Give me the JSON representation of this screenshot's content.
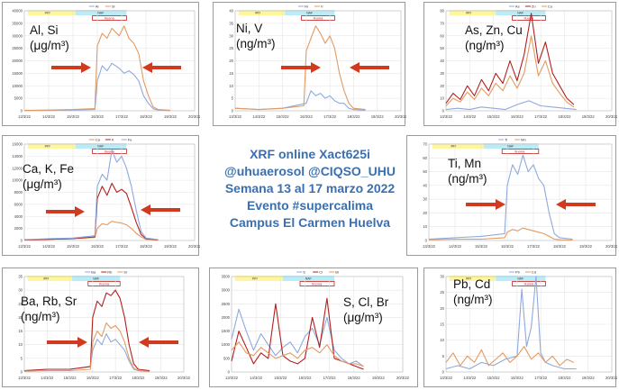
{
  "center_text": {
    "line1": "XRF online Xact625i",
    "line2": "@uhuaerosol @CIQSO_UHU",
    "line3": "Semana 13 al 17 marzo 2022",
    "line4": "Evento #supercalima",
    "line5": "Campus El Carmen Huelva"
  },
  "colors": {
    "blue": "#8fa9dd",
    "orange": "#e39a62",
    "red": "#b31f1f",
    "arrow": "#d13a1e",
    "title": "#3a6fb0"
  },
  "chart_data": [
    {
      "id": "p1",
      "type": "line",
      "label_line1": "Al, Si",
      "label_line2": "(μg/m³)",
      "legend": [
        "Al",
        "Si"
      ],
      "x_ticks": [
        "13/3/22",
        "14/3/22",
        "15/3/22",
        "16/3/22",
        "17/3/22",
        "18/3/22",
        "19/3/22",
        "20/3/22"
      ],
      "y_ticks_left": [
        "0",
        "5000",
        "10000",
        "15000",
        "20000",
        "25000",
        "30000",
        "35000",
        "40000"
      ],
      "band_labels": [
        "###",
        "NAF"
      ],
      "event_label": "Iluona",
      "arrows": true,
      "series": [
        {
          "name": "Al",
          "color": "#8fa9dd",
          "x": [
            0,
            1,
            2,
            2.9,
            3.0,
            3.2,
            3.4,
            3.6,
            3.9,
            4.1,
            4.3,
            4.5,
            4.7,
            4.9,
            5.1,
            5.3,
            5.5,
            6
          ],
          "values": [
            100,
            200,
            300,
            500,
            12000,
            18000,
            16000,
            19000,
            17000,
            15000,
            16000,
            14500,
            12000,
            6000,
            3000,
            800,
            300,
            100
          ]
        },
        {
          "name": "Si",
          "color": "#e39a62",
          "x": [
            0,
            1,
            2,
            2.9,
            3.0,
            3.2,
            3.4,
            3.6,
            3.9,
            4.1,
            4.3,
            4.5,
            4.7,
            4.9,
            5.1,
            5.3,
            5.5,
            6
          ],
          "values": [
            150,
            300,
            500,
            900,
            26000,
            31000,
            29000,
            33000,
            30000,
            34000,
            29000,
            27000,
            23000,
            12000,
            6000,
            1500,
            500,
            200
          ]
        }
      ]
    },
    {
      "id": "p2",
      "type": "line",
      "label_line1": "Ni, V",
      "label_line2": "(ng/m³)",
      "legend": [
        "Ni",
        "V"
      ],
      "x_ticks": [
        "13/3/22",
        "14/3/22",
        "15/3/22",
        "16/3/22",
        "17/3/22",
        "18/3/22",
        "19/3/22",
        "20/3/22"
      ],
      "y_ticks_left": [
        "0",
        "5",
        "10",
        "15",
        "20",
        "25",
        "30",
        "35",
        "40"
      ],
      "band_labels": [
        "###",
        "NAF"
      ],
      "event_label": "Iluona",
      "arrows": true,
      "series": [
        {
          "name": "Ni",
          "color": "#8fa9dd",
          "x": [
            0,
            1,
            2,
            3.0,
            3.2,
            3.4,
            3.6,
            3.8,
            4.0,
            4.2,
            4.4,
            4.6,
            4.8,
            5.0,
            5.5
          ],
          "values": [
            1,
            0.5,
            1,
            3,
            8,
            6,
            7,
            5,
            6,
            4,
            3,
            3,
            1,
            0.5,
            0.2
          ]
        },
        {
          "name": "V",
          "color": "#e39a62",
          "x": [
            0,
            1,
            2,
            2.9,
            3.0,
            3.2,
            3.4,
            3.6,
            3.8,
            4.0,
            4.2,
            4.4,
            4.6,
            4.8,
            5.0,
            5.5
          ],
          "values": [
            1,
            0.5,
            1,
            2,
            24,
            29,
            34,
            31,
            27,
            30,
            25,
            15,
            8,
            3,
            1,
            0.5
          ]
        }
      ]
    },
    {
      "id": "p3",
      "type": "line",
      "label_line1": "As, Zn, Cu",
      "label_line2": "(ng/m³)",
      "legend": [
        "As",
        "Zn",
        "Cu"
      ],
      "x_ticks": [
        "13/3/22",
        "14/3/22",
        "15/3/22",
        "16/3/22",
        "17/3/22",
        "18/3/22",
        "19/3/22",
        "20/3/22"
      ],
      "y_ticks_left": [
        "0",
        "10",
        "20",
        "30",
        "40",
        "50",
        "60",
        "70",
        "80"
      ],
      "band_labels": [
        "###",
        "NAF"
      ],
      "event_label": "Iluona",
      "arrows": false,
      "series": [
        {
          "name": "As",
          "color": "#8fa9dd",
          "x": [
            0,
            0.5,
            1,
            1.5,
            2,
            2.5,
            3,
            3.5,
            4,
            4.5,
            5,
            5.5
          ],
          "values": [
            1,
            2,
            1,
            3,
            2,
            1,
            5,
            8,
            4,
            3,
            2,
            1
          ]
        },
        {
          "name": "Zn",
          "color": "#b31f1f",
          "x": [
            0,
            0.3,
            0.6,
            0.9,
            1.2,
            1.5,
            1.8,
            2.1,
            2.4,
            2.7,
            3.0,
            3.3,
            3.6,
            3.9,
            4.2,
            4.5,
            4.8,
            5.1,
            5.4
          ],
          "values": [
            6,
            14,
            9,
            20,
            12,
            25,
            16,
            30,
            22,
            40,
            24,
            45,
            78,
            38,
            55,
            30,
            20,
            10,
            5
          ]
        },
        {
          "name": "Cu",
          "color": "#e39a62",
          "x": [
            0,
            0.3,
            0.6,
            0.9,
            1.2,
            1.5,
            1.8,
            2.1,
            2.4,
            2.7,
            3.0,
            3.3,
            3.6,
            3.9,
            4.2,
            4.5,
            4.8,
            5.1,
            5.4
          ],
          "values": [
            4,
            10,
            7,
            15,
            9,
            18,
            12,
            22,
            16,
            28,
            18,
            30,
            60,
            28,
            40,
            22,
            14,
            7,
            3
          ]
        }
      ]
    },
    {
      "id": "p4",
      "type": "line",
      "label_line1": "Ca, K, Fe",
      "label_line2": "(μg/m³)",
      "legend": [
        "Ca",
        "K",
        "Fe"
      ],
      "x_ticks": [
        "13/3/22",
        "14/3/22",
        "15/3/22",
        "16/3/22",
        "17/3/22",
        "18/3/22",
        "19/3/22",
        "20/3/22"
      ],
      "y_ticks_left": [
        "0",
        "2000",
        "4000",
        "6000",
        "8000",
        "10000",
        "12000",
        "14000",
        "16000"
      ],
      "band_labels": [
        "###",
        "NAF"
      ],
      "event_label": "Iluona",
      "arrows": true,
      "series": [
        {
          "name": "Ca",
          "color": "#e39a62",
          "x": [
            0,
            1,
            2,
            2.9,
            3.0,
            3.2,
            3.4,
            3.6,
            3.8,
            4.0,
            4.2,
            4.4,
            4.6,
            4.8,
            5.0,
            5.5
          ],
          "values": [
            100,
            200,
            300,
            500,
            2000,
            2800,
            2600,
            3200,
            3000,
            2900,
            2600,
            2000,
            1200,
            600,
            200,
            100
          ]
        },
        {
          "name": "K",
          "color": "#b31f1f",
          "x": [
            0,
            1,
            2,
            2.9,
            3.0,
            3.2,
            3.4,
            3.6,
            3.8,
            4.0,
            4.2,
            4.4,
            4.6,
            4.8,
            5.0,
            5.5
          ],
          "values": [
            100,
            200,
            300,
            600,
            7000,
            9000,
            7500,
            9500,
            8000,
            8500,
            7800,
            5500,
            3000,
            1000,
            300,
            100
          ]
        },
        {
          "name": "Fe",
          "color": "#8fa9dd",
          "x": [
            0,
            1,
            2,
            2.9,
            3.0,
            3.2,
            3.4,
            3.6,
            3.8,
            4.0,
            4.2,
            4.4,
            4.6,
            4.8,
            5.0,
            5.5
          ],
          "values": [
            150,
            300,
            400,
            800,
            9000,
            11000,
            10000,
            15000,
            13000,
            14000,
            12000,
            9000,
            5000,
            1500,
            400,
            150
          ]
        }
      ]
    },
    {
      "id": "p5",
      "type": "line",
      "label_line1": "Ti, Mn",
      "label_line2": "(ng/m³)",
      "legend": [
        "Ti",
        "Mn"
      ],
      "x_ticks": [
        "13/3/22",
        "14/3/22",
        "15/3/22",
        "16/3/22",
        "17/3/22",
        "18/3/22",
        "19/3/22",
        "20/3/22"
      ],
      "y_ticks_left": [
        "0",
        "10",
        "20",
        "30",
        "40",
        "50",
        "60",
        "70"
      ],
      "band_labels": [
        "###",
        "NAF"
      ],
      "event_label": "Iluona",
      "arrows": true,
      "series": [
        {
          "name": "Ti",
          "color": "#8fa9dd",
          "x": [
            0,
            1,
            2,
            2.9,
            3.0,
            3.2,
            3.4,
            3.6,
            3.8,
            4.0,
            4.2,
            4.4,
            4.6,
            4.8,
            5.0,
            5.5
          ],
          "values": [
            1,
            2,
            3,
            5,
            40,
            55,
            48,
            62,
            50,
            55,
            45,
            40,
            20,
            5,
            2,
            1
          ]
        },
        {
          "name": "Mn",
          "color": "#e39a62",
          "x": [
            0,
            1,
            2,
            2.9,
            3.0,
            3.2,
            3.4,
            3.6,
            3.8,
            4.0,
            4.2,
            4.4,
            4.6,
            4.8,
            5.0,
            5.5
          ],
          "values": [
            0.5,
            1,
            1,
            2,
            6,
            8,
            7,
            9,
            8,
            7,
            6,
            5,
            3,
            1,
            0.5,
            0.3
          ]
        }
      ]
    },
    {
      "id": "p6",
      "type": "line",
      "label_line1": "Ba, Rb, Sr",
      "label_line2": "(ng/m³)",
      "legend": [
        "Ba",
        "Rb",
        "Sr"
      ],
      "x_ticks": [
        "13/3/22",
        "14/3/22",
        "15/3/22",
        "16/3/22",
        "17/3/22",
        "18/3/22",
        "19/3/22",
        "20/3/22"
      ],
      "y_ticks_left": [
        "0",
        "5",
        "10",
        "15",
        "20",
        "25",
        "30",
        "35"
      ],
      "band_labels": [
        "###",
        "NAF"
      ],
      "event_label": "Iluona",
      "arrows": true,
      "series": [
        {
          "name": "Ba",
          "color": "#8fa9dd",
          "x": [
            0,
            1,
            2,
            2.9,
            3.0,
            3.2,
            3.4,
            3.6,
            3.8,
            4.0,
            4.2,
            4.4,
            4.6,
            4.8,
            5.0,
            5.5
          ],
          "values": [
            0.5,
            1,
            1,
            2,
            8,
            12,
            10,
            14,
            11,
            12,
            10,
            8,
            4,
            1,
            0.5,
            0.3
          ]
        },
        {
          "name": "Rb",
          "color": "#b31f1f",
          "x": [
            0,
            1,
            2,
            2.9,
            3.0,
            3.2,
            3.4,
            3.6,
            3.8,
            4.0,
            4.2,
            4.4,
            4.6,
            4.8,
            5.0,
            5.5
          ],
          "values": [
            0.5,
            1,
            1,
            2,
            20,
            26,
            24,
            29,
            28,
            30,
            27,
            20,
            10,
            3,
            1,
            0.5
          ]
        },
        {
          "name": "Sr",
          "color": "#e39a62",
          "x": [
            0,
            1,
            2,
            2.9,
            3.0,
            3.2,
            3.4,
            3.6,
            3.8,
            4.0,
            4.2,
            4.4,
            4.6,
            4.8,
            5.0,
            5.5
          ],
          "values": [
            0.3,
            0.5,
            0.5,
            1,
            11,
            15,
            13,
            18,
            16,
            17,
            15,
            11,
            5,
            1.5,
            0.5,
            0.2
          ]
        }
      ]
    },
    {
      "id": "p7",
      "type": "line",
      "label_line1": "S, Cl, Br",
      "label_line2": "(μg/m³)",
      "legend": [
        "S",
        "Cl",
        "Br"
      ],
      "x_ticks": [
        "13/3/22",
        "14/3/22",
        "15/3/22",
        "16/3/22",
        "17/3/22",
        "18/3/22",
        "19/3/22",
        "20/3/22"
      ],
      "y_ticks_left": [
        "0",
        "500",
        "1000",
        "1500",
        "2000",
        "2500",
        "3000",
        "3500"
      ],
      "band_labels": [
        "###",
        "NAF"
      ],
      "event_label": "Iluona",
      "arrows": false,
      "series": [
        {
          "name": "S",
          "color": "#8fa9dd",
          "x": [
            0,
            0.3,
            0.6,
            0.9,
            1.2,
            1.5,
            1.8,
            2.1,
            2.4,
            2.7,
            3.0,
            3.3,
            3.6,
            3.9,
            4.2,
            4.5,
            4.8,
            5.1,
            5.4
          ],
          "values": [
            1200,
            2300,
            1500,
            800,
            1400,
            1000,
            600,
            900,
            1100,
            700,
            1300,
            1600,
            1000,
            2000,
            800,
            500,
            300,
            400,
            200
          ]
        },
        {
          "name": "Cl",
          "color": "#b31f1f",
          "x": [
            0,
            0.3,
            0.6,
            0.9,
            1.2,
            1.5,
            1.8,
            2.1,
            2.4,
            2.7,
            3.0,
            3.3,
            3.6,
            3.9,
            4.2,
            4.5,
            4.8,
            5.1,
            5.4
          ],
          "values": [
            400,
            1500,
            900,
            300,
            700,
            500,
            2500,
            600,
            400,
            300,
            500,
            2000,
            900,
            2700,
            500,
            400,
            300,
            200,
            100
          ]
        },
        {
          "name": "Br",
          "color": "#e39a62",
          "x": [
            0,
            0.3,
            0.6,
            0.9,
            1.2,
            1.5,
            1.8,
            2.1,
            2.4,
            2.7,
            3.0,
            3.3,
            3.6,
            3.9,
            4.2,
            4.5,
            4.8,
            5.1,
            5.4
          ],
          "values": [
            800,
            1100,
            700,
            600,
            900,
            700,
            500,
            600,
            700,
            500,
            800,
            900,
            700,
            1000,
            600,
            400,
            300,
            300,
            200
          ]
        }
      ]
    },
    {
      "id": "p8",
      "type": "line",
      "label_line1": "Pb, Cd",
      "label_line2": "(ng/m³)",
      "legend": [
        "Pb",
        "Cd"
      ],
      "x_ticks": [
        "13/3/22",
        "14/3/22",
        "15/3/22",
        "16/3/22",
        "17/3/22",
        "18/3/22",
        "19/3/22",
        "20/3/22"
      ],
      "y_ticks_left": [
        "0",
        "5",
        "10",
        "15",
        "20",
        "25",
        "30"
      ],
      "band_labels": [
        "###",
        "NAF"
      ],
      "event_label": "Iluona",
      "arrows": false,
      "series": [
        {
          "name": "Pb",
          "color": "#8fa9dd",
          "x": [
            0,
            0.5,
            1,
            1.5,
            2,
            2.5,
            3,
            3.2,
            3.4,
            3.6,
            3.8,
            4.0,
            4.2,
            4.5,
            5,
            5.5
          ],
          "values": [
            1,
            2,
            1,
            3,
            2,
            4,
            5,
            26,
            8,
            14,
            30,
            6,
            3,
            2,
            1,
            1
          ]
        },
        {
          "name": "Cd",
          "color": "#e39a62",
          "x": [
            0,
            0.3,
            0.6,
            0.9,
            1.2,
            1.5,
            1.8,
            2.1,
            2.4,
            2.7,
            3.0,
            3.3,
            3.6,
            3.9,
            4.2,
            4.5,
            4.8,
            5.1,
            5.4
          ],
          "values": [
            3,
            6,
            2,
            5,
            3,
            7,
            2,
            4,
            6,
            3,
            5,
            8,
            4,
            6,
            3,
            5,
            2,
            4,
            3
          ]
        }
      ]
    }
  ]
}
